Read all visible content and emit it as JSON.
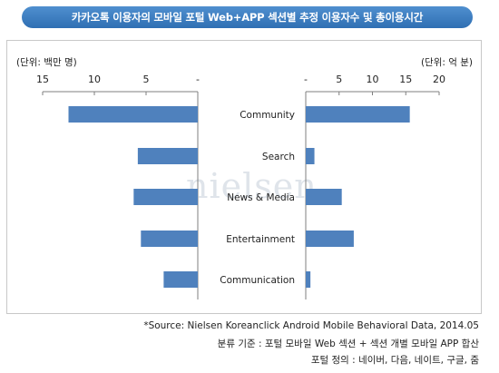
{
  "title": "카카오톡 이용자의 모바일 포털 Web+APP 섹션별 추정 이용자수 및 총이용시간",
  "watermark": "nielsen",
  "chart_data": [
    {
      "type": "bar",
      "orientation": "horizontal",
      "direction": "right-to-left",
      "unit_label": "(단위: 백만 명)",
      "categories": [
        "Community",
        "Search",
        "News & Media",
        "Entertainment",
        "Communication"
      ],
      "values": [
        12.5,
        5.8,
        6.2,
        5.5,
        3.3
      ],
      "xlim": [
        0,
        15
      ],
      "ticks": [
        "15",
        "10",
        "5",
        "-"
      ],
      "bar_color": "#4f81bd"
    },
    {
      "type": "bar",
      "orientation": "horizontal",
      "unit_label": "(단위: 억 분)",
      "categories": [
        "Community",
        "Search",
        "News & Media",
        "Entertainment",
        "Communication"
      ],
      "values": [
        15.6,
        1.3,
        5.4,
        7.2,
        0.7
      ],
      "xlim": [
        0,
        20
      ],
      "ticks": [
        "-",
        "5",
        "10",
        "15",
        "20"
      ],
      "bar_color": "#4f81bd"
    }
  ],
  "source": {
    "line1": "*Source: Nielsen Koreanclick Android Mobile Behavioral Data, 2014.05",
    "line2": "분류 기준 : 포털 모바일 Web 섹션 + 섹션 개별 모바일 APP 합산",
    "line3": "포털 정의 : 네이버, 다음, 네이트, 구글, 줌"
  }
}
